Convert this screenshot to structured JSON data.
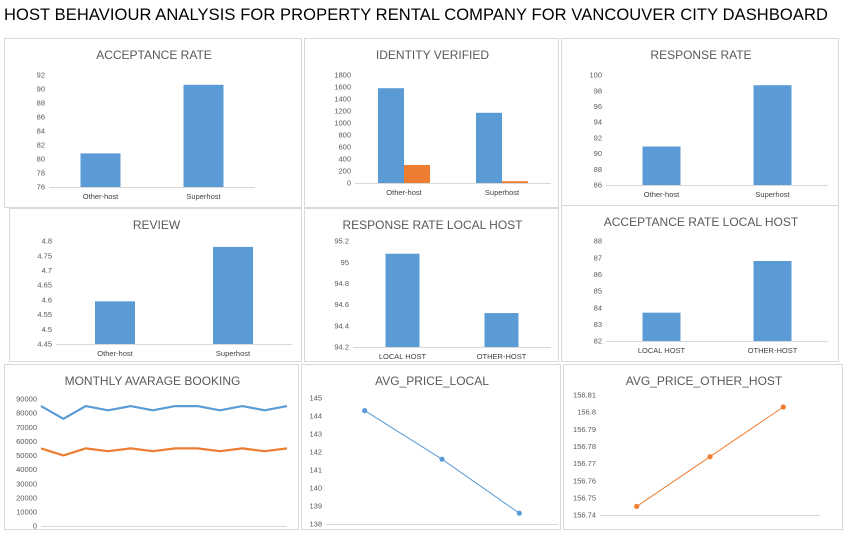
{
  "dashboard": {
    "title": "HOST BEHAVIOUR ANALYSIS FOR PROPERTY RENTAL COMPANY FOR VANCOUVER CITY DASHBOARD"
  },
  "chart_data": [
    {
      "id": "acceptance",
      "type": "bar",
      "title": "ACCEPTANCE RATE",
      "categories": [
        "Other-host",
        "Superhost"
      ],
      "series": [
        {
          "values": [
            80.8,
            90.6
          ],
          "color": "#5b9bd5"
        }
      ],
      "ylim": [
        76,
        92
      ],
      "yticks": [
        76,
        78,
        80,
        82,
        84,
        86,
        88,
        90,
        92
      ],
      "grid": false
    },
    {
      "id": "identity",
      "type": "bar",
      "title": "IDENTITY VERIFIED",
      "categories": [
        "Other-host",
        "Superhost"
      ],
      "series": [
        {
          "values": [
            1580,
            1170
          ],
          "color": "#5b9bd5"
        },
        {
          "values": [
            300,
            30
          ],
          "color": "#ed7d31"
        }
      ],
      "ylim": [
        0,
        1800
      ],
      "yticks": [
        0,
        200,
        400,
        600,
        800,
        1000,
        1200,
        1400,
        1600,
        1800
      ],
      "grid": false
    },
    {
      "id": "response",
      "type": "bar",
      "title": "RESPONSE RATE",
      "categories": [
        "Other-host",
        "Superhost"
      ],
      "series": [
        {
          "values": [
            90.9,
            98.7
          ],
          "color": "#5b9bd5"
        }
      ],
      "ylim": [
        86,
        100
      ],
      "yticks": [
        86,
        88,
        90,
        92,
        94,
        96,
        98,
        100
      ],
      "grid": false
    },
    {
      "id": "review",
      "type": "bar",
      "title": "REVIEW",
      "categories": [
        "Other-host",
        "Superhost"
      ],
      "series": [
        {
          "values": [
            4.595,
            4.78
          ],
          "color": "#5b9bd5"
        }
      ],
      "ylim": [
        4.45,
        4.8
      ],
      "yticks": [
        "4.45",
        "4.5",
        "4.55",
        "4.6",
        "4.65",
        "4.7",
        "4.75",
        "4.8"
      ],
      "grid": false
    },
    {
      "id": "response_local",
      "type": "bar",
      "title": "RESPONSE RATE LOCAL HOST",
      "categories": [
        "LOCAL HOST",
        "OTHER-HOST"
      ],
      "series": [
        {
          "values": [
            95.08,
            94.52
          ],
          "color": "#5b9bd5"
        }
      ],
      "ylim": [
        94.2,
        95.2
      ],
      "yticks": [
        "94.2",
        "94.4",
        "94.6",
        "94.8",
        "95",
        "95.2"
      ],
      "grid": false
    },
    {
      "id": "acceptance_local",
      "type": "bar",
      "title": "ACCEPTANCE RATE LOCAL HOST",
      "categories": [
        "LOCAL HOST",
        "OTHER-HOST"
      ],
      "series": [
        {
          "values": [
            83.7,
            86.8
          ],
          "color": "#5b9bd5"
        }
      ],
      "ylim": [
        82,
        88
      ],
      "yticks": [
        82,
        83,
        84,
        85,
        86,
        87,
        88
      ],
      "grid": false
    },
    {
      "id": "monthly",
      "type": "line",
      "title": "MONTHLY AVARAGE BOOKING",
      "x": [
        1,
        2,
        3,
        4,
        5,
        6,
        7,
        8,
        9,
        10,
        11,
        12
      ],
      "series": [
        {
          "values": [
            85000,
            76000,
            85000,
            82000,
            85000,
            82000,
            85000,
            85000,
            82000,
            85000,
            82000,
            85000
          ],
          "color": "#5b9bd5"
        },
        {
          "values": [
            55000,
            50000,
            55000,
            53000,
            55000,
            53000,
            55000,
            55000,
            53000,
            55000,
            53000,
            55000
          ],
          "color": "#ed7d31"
        }
      ],
      "ylim": [
        0,
        90000
      ],
      "yticks": [
        0,
        10000,
        20000,
        30000,
        40000,
        50000,
        60000,
        70000,
        80000,
        90000
      ],
      "grid": false
    },
    {
      "id": "avg_price_local",
      "type": "line",
      "title": "AVG_PRICE_LOCAL",
      "x": [
        1,
        2,
        3
      ],
      "series": [
        {
          "values": [
            144.3,
            141.6,
            138.6
          ],
          "color": "#5b9bd5",
          "markers": true
        }
      ],
      "ylim": [
        138,
        145
      ],
      "yticks": [
        138,
        139,
        140,
        141,
        142,
        143,
        144,
        145
      ],
      "grid": false
    },
    {
      "id": "avg_price_other",
      "type": "line",
      "title": "AVG_PRICE_OTHER_HOST",
      "x": [
        1,
        2,
        3
      ],
      "series": [
        {
          "values": [
            156.745,
            156.774,
            156.803
          ],
          "color": "#ed7d31",
          "markers": true
        }
      ],
      "ylim": [
        156.74,
        156.81
      ],
      "yticks": [
        "156.74",
        "156.75",
        "156.76",
        "156.77",
        "156.78",
        "156.79",
        "156.8",
        "156.81"
      ],
      "grid": false
    }
  ]
}
